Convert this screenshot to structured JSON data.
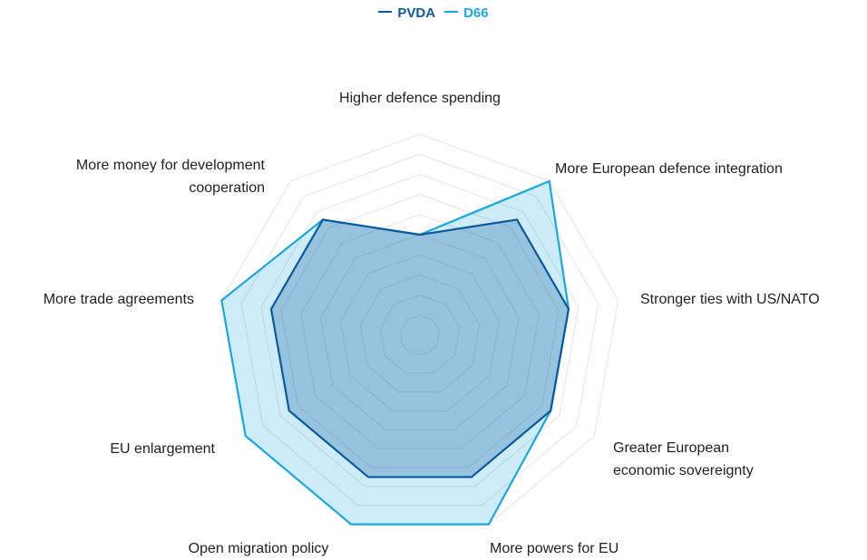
{
  "chart_data": {
    "type": "radar",
    "categories": [
      "Higher defence spending",
      "More European defence integration",
      "Stronger ties with US/NATO",
      "Greater European economic sovereignty",
      "More powers for EU",
      "Open migration policy",
      "EU enlargement",
      "More trade agreements",
      "More money for development cooperation"
    ],
    "series": [
      {
        "name": "PVDA",
        "color": "#0b5a9e",
        "values": [
          5,
          7.5,
          7.5,
          7.5,
          7.5,
          7.5,
          7.5,
          7.5,
          7.5
        ]
      },
      {
        "name": "D66",
        "color": "#1ba7e1",
        "values": [
          5,
          10,
          7.5,
          7.5,
          10,
          10,
          10,
          10,
          7.5
        ]
      }
    ],
    "ylim": [
      0,
      10
    ],
    "yticks": [
      1,
      2,
      3,
      4,
      5,
      6,
      7,
      8,
      9,
      10
    ],
    "grid": true,
    "legend": "top"
  }
}
